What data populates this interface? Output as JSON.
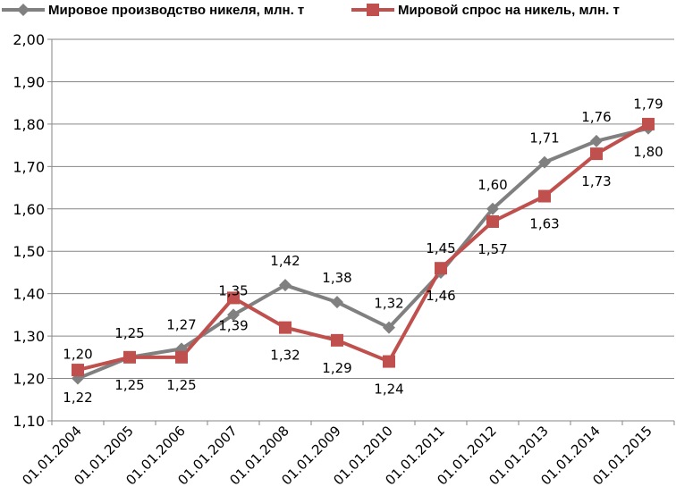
{
  "chart_data": {
    "type": "line",
    "categories": [
      "01.01.2004",
      "01.01.2005",
      "01.01.2006",
      "01.01.2007",
      "01.01.2008",
      "01.01.2009",
      "01.01.2010",
      "01.01.2011",
      "01.01.2012",
      "01.01.2013",
      "01.01.2014",
      "01.01.2015"
    ],
    "series": [
      {
        "name": "Мировое производство никеля, млн. т",
        "color": "#808080",
        "marker": "diamond",
        "values": [
          1.2,
          1.25,
          1.27,
          1.35,
          1.42,
          1.38,
          1.32,
          1.45,
          1.6,
          1.71,
          1.76,
          1.79
        ],
        "labels": [
          "1,20",
          "1,25",
          "1,27",
          "1,35",
          "1,42",
          "1,38",
          "1,32",
          "1,45",
          "1,60",
          "1,71",
          "1,76",
          "1,79"
        ]
      },
      {
        "name": "Мировой спрос на никель, млн. т",
        "color": "#C0504D",
        "marker": "square",
        "values": [
          1.22,
          1.25,
          1.25,
          1.39,
          1.32,
          1.29,
          1.24,
          1.46,
          1.57,
          1.63,
          1.73,
          1.8
        ],
        "labels": [
          "1,22",
          "1,25",
          "1,25",
          "1,39",
          "1,32",
          "1,29",
          "1,24",
          "1,46",
          "1,57",
          "1,63",
          "1,73",
          "1,80"
        ]
      }
    ],
    "ylim": [
      1.1,
      2.0
    ],
    "yticks": [
      "1,10",
      "1,20",
      "1,30",
      "1,40",
      "1,50",
      "1,60",
      "1,70",
      "1,80",
      "1,90",
      "2,00"
    ],
    "grid": true,
    "legend_position": "top"
  }
}
